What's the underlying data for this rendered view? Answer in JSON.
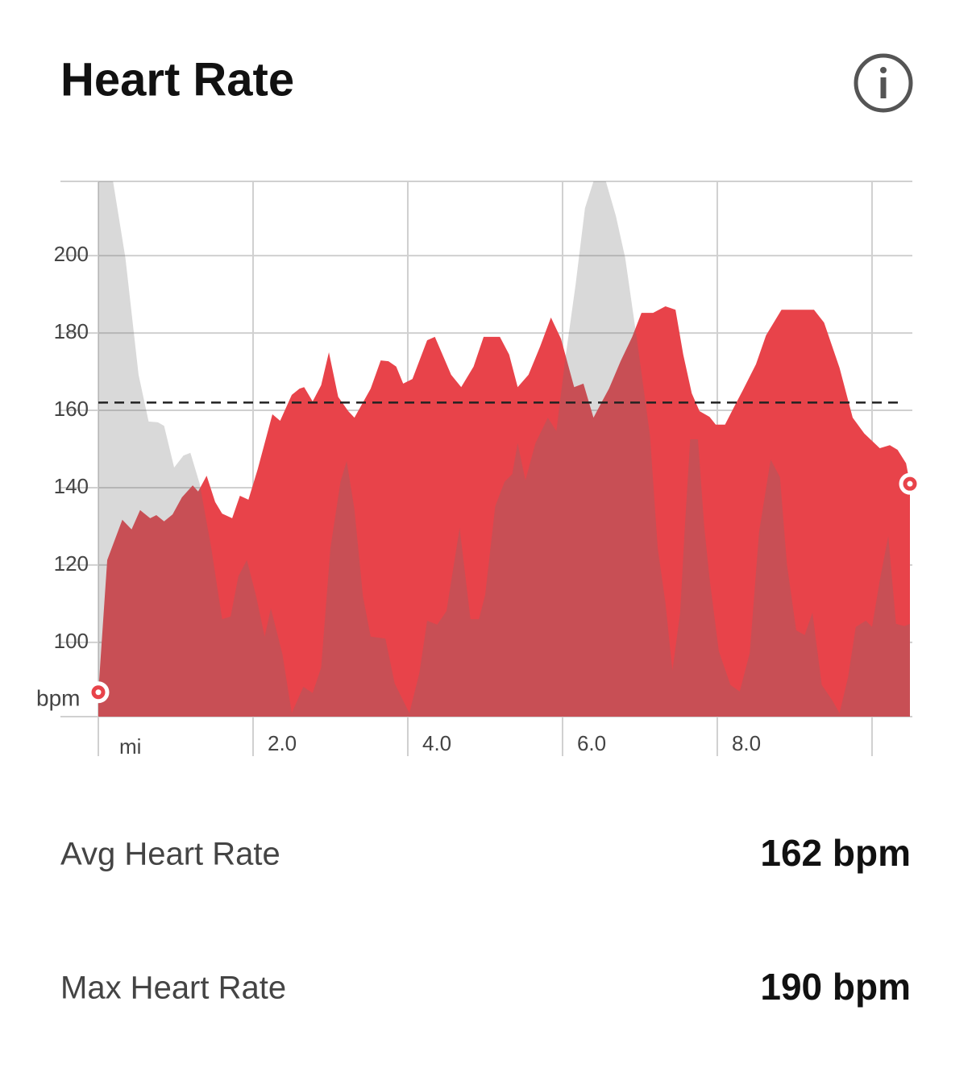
{
  "header": {
    "title": "Heart Rate"
  },
  "chart_data": {
    "type": "area",
    "ylabel": "bpm",
    "xlim": [
      0,
      10.49
    ],
    "ylim": [
      80.8,
      219.2
    ],
    "xticks": [
      {
        "value": 0,
        "label": "mi"
      },
      {
        "value": 2,
        "label": "2.0"
      },
      {
        "value": 4,
        "label": "4.0"
      },
      {
        "value": 6,
        "label": "6.0"
      },
      {
        "value": 8,
        "label": "8.0"
      },
      {
        "value": 10
      }
    ],
    "yticks": [
      100,
      120,
      140,
      160,
      180,
      200
    ],
    "grid": true,
    "avg_line": 162,
    "series": [
      {
        "color": "#e8434a",
        "markers": true,
        "x": [
          0,
          0.115,
          0.31,
          0.43,
          0.54,
          0.67,
          0.75,
          0.85,
          0.96,
          1.08,
          1.22,
          1.29,
          1.4,
          1.51,
          1.6,
          1.73,
          1.83,
          1.94,
          2.06,
          2.25,
          2.35,
          2.5,
          2.6,
          2.66,
          2.77,
          2.88,
          2.98,
          3.1,
          3.23,
          3.31,
          3.52,
          3.65,
          3.75,
          3.85,
          3.94,
          4.06,
          4.25,
          4.35,
          4.56,
          4.69,
          4.85,
          4.98,
          5.19,
          5.31,
          5.42,
          5.56,
          5.71,
          5.85,
          5.98,
          6.15,
          6.27,
          6.4,
          6.5,
          6.6,
          6.75,
          6.9,
          7.02,
          7.17,
          7.33,
          7.46,
          7.56,
          7.67,
          7.77,
          7.9,
          7.98,
          8.1,
          8.21,
          8.33,
          8.5,
          8.63,
          8.83,
          9.25,
          9.38,
          9.58,
          9.75,
          9.9,
          10.1,
          10.23,
          10.33,
          10.44,
          10.49
        ],
        "values": [
          87.1,
          121.3,
          131.7,
          129.2,
          134.2,
          132.1,
          132.9,
          131.3,
          133.1,
          137.5,
          140.6,
          139,
          143.1,
          136.3,
          133.3,
          132.1,
          137.9,
          136.9,
          144.8,
          159,
          157.3,
          164,
          165.6,
          166,
          162.3,
          166.5,
          175,
          163.5,
          159.8,
          158.1,
          165.6,
          172.9,
          172.7,
          171.3,
          166.9,
          168.1,
          178.1,
          179,
          169.2,
          166,
          171.3,
          179,
          179,
          174.4,
          166,
          169.2,
          176.5,
          184,
          178.5,
          166,
          166.9,
          158.1,
          161.9,
          165.6,
          172.7,
          179,
          185.2,
          185.2,
          186.9,
          186,
          174.4,
          164.4,
          159.8,
          158.3,
          156.3,
          156.3,
          160.6,
          165.2,
          171.9,
          179.4,
          186,
          186,
          182.7,
          171,
          158.1,
          154,
          150.2,
          151,
          149.8,
          146.3,
          141
        ]
      },
      {
        "color": "#747474",
        "opacity": 0.27,
        "x": [
          0,
          0.19,
          0.35,
          0.52,
          0.65,
          0.77,
          0.85,
          0.98,
          1.1,
          1.19,
          1.31,
          1.46,
          1.6,
          1.71,
          1.81,
          1.92,
          2.04,
          2.15,
          2.23,
          2.38,
          2.5,
          2.65,
          2.77,
          2.88,
          3.0,
          3.13,
          3.21,
          3.31,
          3.42,
          3.52,
          3.71,
          3.83,
          4.02,
          4.15,
          4.25,
          4.38,
          4.5,
          4.67,
          4.81,
          4.92,
          5.0,
          5.13,
          5.25,
          5.35,
          5.42,
          5.52,
          5.65,
          5.81,
          5.92,
          6.04,
          6.17,
          6.29,
          6.4,
          6.56,
          6.69,
          6.81,
          6.96,
          7.13,
          7.23,
          7.33,
          7.42,
          7.52,
          7.58,
          7.65,
          7.75,
          7.83,
          7.9,
          8.02,
          8.17,
          8.29,
          8.42,
          8.54,
          8.69,
          8.81,
          8.9,
          9.02,
          9.13,
          9.23,
          9.35,
          9.48,
          9.58,
          9.69,
          9.79,
          9.92,
          10.0,
          10.1,
          10.21,
          10.31,
          10.42,
          10.49
        ],
        "values": [
          219.2,
          219.2,
          199.4,
          169.2,
          157.1,
          156.9,
          156,
          145.2,
          148.3,
          149,
          141,
          124.4,
          106,
          106.7,
          117.1,
          121.3,
          111.9,
          101.5,
          108.8,
          96.9,
          81.7,
          88.5,
          86.9,
          93.5,
          124.4,
          141.5,
          146.9,
          134.4,
          111.9,
          101.5,
          101,
          89.4,
          81.7,
          92.1,
          105.6,
          104.6,
          108.1,
          129.6,
          106,
          106,
          112.3,
          135.2,
          141.5,
          143.5,
          151.5,
          141.9,
          151.5,
          158.1,
          154.6,
          174,
          192.7,
          212.3,
          219.2,
          219.2,
          210.2,
          199.4,
          178.5,
          153.5,
          124.4,
          110.2,
          92.7,
          107.7,
          129.6,
          152.5,
          152.5,
          130.2,
          116.5,
          97.7,
          89,
          87.3,
          97.3,
          128.5,
          147.3,
          142.7,
          120.2,
          103.1,
          101.9,
          107.7,
          89,
          85.2,
          81.7,
          91,
          104,
          105.6,
          104,
          116,
          127.5,
          104.8,
          104.2,
          104.8
        ]
      }
    ]
  },
  "stats": [
    {
      "label": "Avg Heart Rate",
      "value": "162 bpm"
    },
    {
      "label": "Max Heart Rate",
      "value": "190 bpm"
    }
  ]
}
